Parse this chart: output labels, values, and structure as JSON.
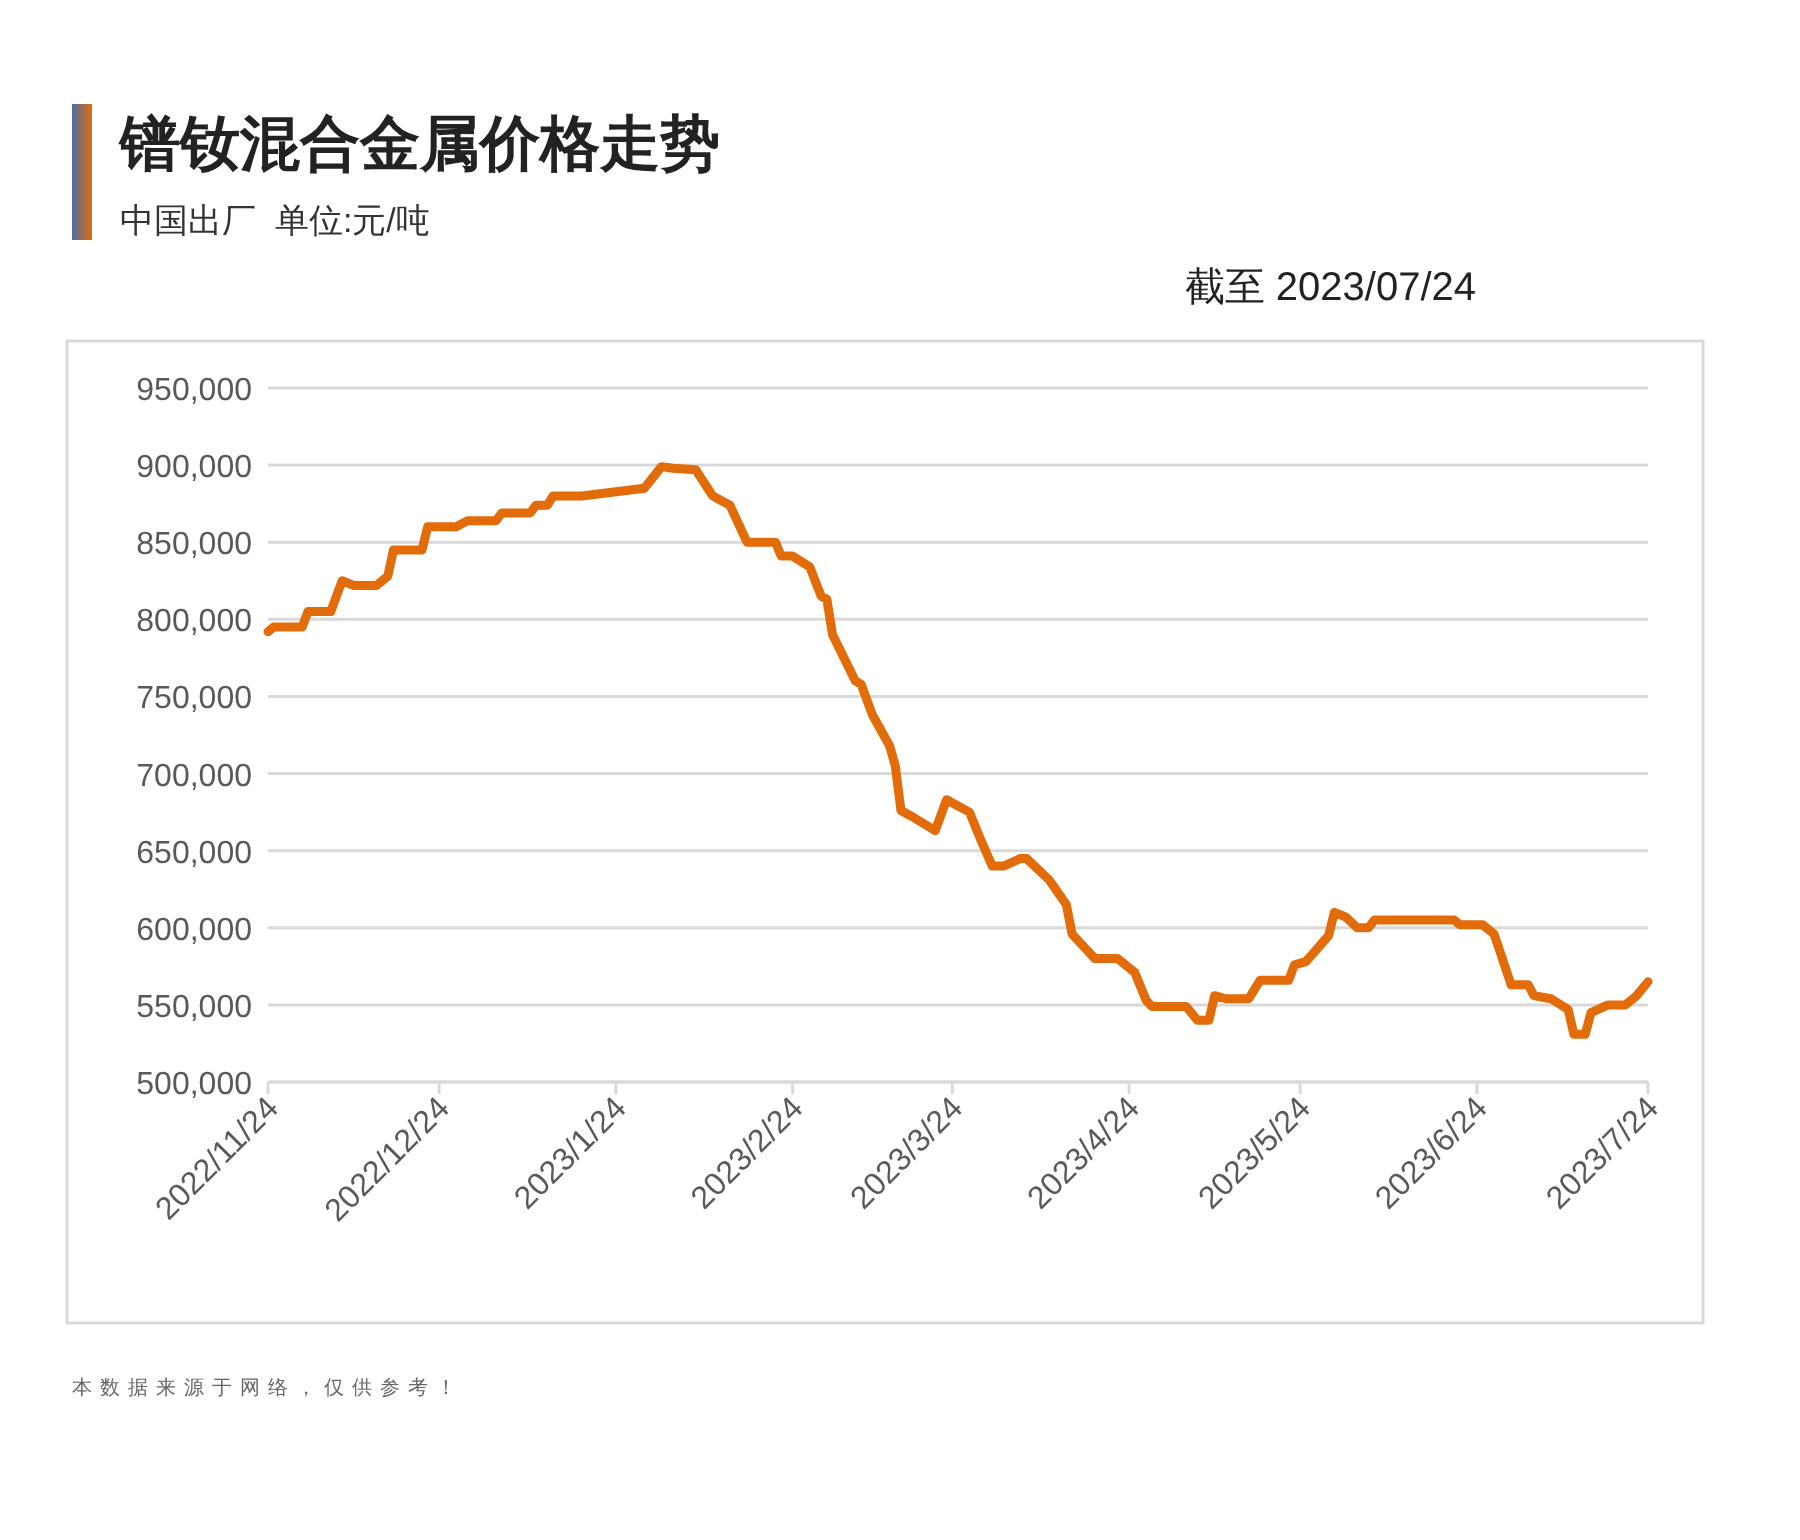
{
  "chart_data": {
    "type": "line",
    "title": "镨钕混合金属价格走势",
    "subtitle": "中国出厂  单位:元/吨",
    "annotations": [
      "截至 2023/07/24",
      "本数据来源于网络，仅供参考！"
    ],
    "x": [
      "2022-11-24",
      "2022-11-25",
      "2022-11-30",
      "2022-12-01",
      "2022-12-05",
      "2022-12-07",
      "2022-12-09",
      "2022-12-13",
      "2022-12-15",
      "2022-12-16",
      "2022-12-21",
      "2022-12-22",
      "2022-12-27",
      "2022-12-29",
      "2023-01-03",
      "2023-01-04",
      "2023-01-09",
      "2023-01-10",
      "2023-01-12",
      "2023-01-13",
      "2023-01-18",
      "2023-01-29",
      "2023-02-01",
      "2023-02-03",
      "2023-02-07",
      "2023-02-10",
      "2023-02-13",
      "2023-02-16",
      "2023-02-21",
      "2023-02-22",
      "2023-02-24",
      "2023-02-27",
      "2023-03-01",
      "2023-03-02",
      "2023-03-03",
      "2023-03-07",
      "2023-03-08",
      "2023-03-10",
      "2023-03-13",
      "2023-03-14",
      "2023-03-15",
      "2023-03-17",
      "2023-03-21",
      "2023-03-23",
      "2023-03-27",
      "2023-03-29",
      "2023-03-31",
      "2023-04-02",
      "2023-04-05",
      "2023-04-06",
      "2023-04-10",
      "2023-04-13",
      "2023-04-14",
      "2023-04-18",
      "2023-04-22",
      "2023-04-25",
      "2023-04-27",
      "2023-04-28",
      "2023-05-04",
      "2023-05-06",
      "2023-05-08",
      "2023-05-09",
      "2023-05-11",
      "2023-05-15",
      "2023-05-17",
      "2023-05-22",
      "2023-05-23",
      "2023-05-25",
      "2023-05-29",
      "2023-05-30",
      "2023-06-01",
      "2023-06-03",
      "2023-06-05",
      "2023-06-06",
      "2023-06-20",
      "2023-06-21",
      "2023-06-25",
      "2023-06-27",
      "2023-06-30",
      "2023-07-03",
      "2023-07-04",
      "2023-07-07",
      "2023-07-10",
      "2023-07-11",
      "2023-07-13",
      "2023-07-14",
      "2023-07-17",
      "2023-07-20",
      "2023-07-22",
      "2023-07-24"
    ],
    "series": [
      {
        "color": "#e36c0a",
        "values": [
          792000,
          795000,
          795000,
          805000,
          805000,
          825000,
          822000,
          822000,
          828000,
          845000,
          845000,
          860000,
          860000,
          864000,
          864000,
          869000,
          869000,
          874000,
          874000,
          880000,
          880000,
          885000,
          899000,
          898000,
          897000,
          880000,
          874000,
          850000,
          850000,
          841000,
          841000,
          834000,
          815000,
          813000,
          790000,
          760000,
          758000,
          738000,
          718000,
          705000,
          676000,
          672000,
          663000,
          683000,
          675000,
          657000,
          640000,
          640000,
          645000,
          645000,
          631000,
          615000,
          596000,
          580000,
          580000,
          571000,
          553000,
          549000,
          549000,
          540000,
          540000,
          556000,
          554000,
          554000,
          566000,
          566000,
          576000,
          578000,
          595000,
          610000,
          607000,
          600000,
          600000,
          605000,
          605000,
          602000,
          602000,
          596000,
          563000,
          563000,
          556000,
          554000,
          547000,
          531000,
          531000,
          545000,
          550000,
          550000,
          556000,
          565000
        ]
      }
    ],
    "xlim": [
      "2022-11-24",
      "2023-07-24"
    ],
    "xticks": [
      {
        "value": "2022-11-24",
        "label": "2022/11/24"
      },
      {
        "value": "2022-12-24",
        "label": "2022/12/24"
      },
      {
        "value": "2023-01-24",
        "label": "2023/1/24"
      },
      {
        "value": "2023-02-24",
        "label": "2023/2/24"
      },
      {
        "value": "2023-03-24",
        "label": "2023/3/24"
      },
      {
        "value": "2023-04-24",
        "label": "2023/4/24"
      },
      {
        "value": "2023-05-24",
        "label": "2023/5/24"
      },
      {
        "value": "2023-06-24",
        "label": "2023/6/24"
      },
      {
        "value": "2023-07-24",
        "label": "2023/7/24"
      }
    ],
    "ylim": [
      500000,
      950000
    ],
    "yticks": [
      {
        "value": 500000,
        "label": "500,000"
      },
      {
        "value": 550000,
        "label": "550,000"
      },
      {
        "value": 600000,
        "label": "600,000"
      },
      {
        "value": 650000,
        "label": "650,000"
      },
      {
        "value": 700000,
        "label": "700,000"
      },
      {
        "value": 750000,
        "label": "750,000"
      },
      {
        "value": 800000,
        "label": "800,000"
      },
      {
        "value": 850000,
        "label": "850,000"
      },
      {
        "value": 900000,
        "label": "900,000"
      },
      {
        "value": 950000,
        "label": "950,000"
      }
    ],
    "grid": "y"
  }
}
